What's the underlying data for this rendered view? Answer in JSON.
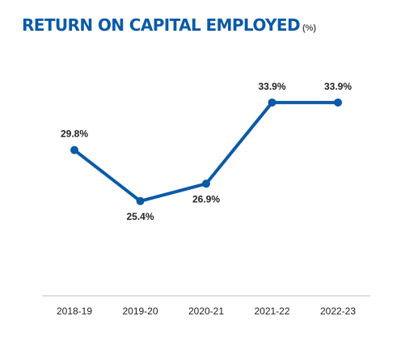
{
  "header": {
    "title": "RETURN ON CAPITAL EMPLOYED",
    "unit": "(%)"
  },
  "colors": {
    "title": "#0a5aa8",
    "line": "#0a5aa8",
    "axis": "#bfbfbf",
    "text": "#222222"
  },
  "chart_data": {
    "type": "line",
    "title": "RETURN ON CAPITAL EMPLOYED",
    "unit": "(%)",
    "categories": [
      "2018-19",
      "2019-20",
      "2020-21",
      "2021-22",
      "2022-23"
    ],
    "series": [
      {
        "values": [
          29.8,
          25.4,
          26.9,
          33.9,
          33.9
        ],
        "labels": [
          "29.8%",
          "25.4%",
          "26.9%",
          "33.9%",
          "33.9%"
        ]
      }
    ],
    "label_positions": [
      "above",
      "below",
      "below",
      "above",
      "above"
    ],
    "ylim": [
      15,
      38
    ],
    "grid": false,
    "legend": "none"
  }
}
